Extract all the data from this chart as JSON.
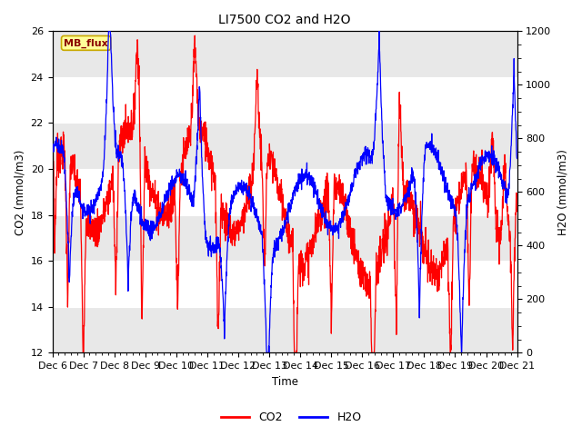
{
  "title": "LI7500 CO2 and H2O",
  "xlabel": "Time",
  "ylabel_left": "CO2 (mmol/m3)",
  "ylabel_right": "H2O (mmol/m3)",
  "ylim_left": [
    12,
    26
  ],
  "ylim_right": [
    0,
    1200
  ],
  "yticks_left": [
    12,
    14,
    16,
    18,
    20,
    22,
    24,
    26
  ],
  "yticks_right": [
    0,
    200,
    400,
    600,
    800,
    1000,
    1200
  ],
  "xtick_labels": [
    "Dec 6",
    "Dec 7",
    "Dec 8",
    "Dec 9",
    "Dec 10",
    "Dec 11",
    "Dec 12",
    "Dec 13",
    "Dec 14",
    "Dec 15",
    "Dec 16",
    "Dec 17",
    "Dec 18",
    "Dec 19",
    "Dec 20",
    "Dec 21"
  ],
  "background_color": "#ffffff",
  "plot_bg_color": "#ffffff",
  "stripe_color": "#e8e8e8",
  "co2_color": "#ff0000",
  "h2o_color": "#0000ff",
  "legend_co2": "CO2",
  "legend_h2o": "H2O",
  "annotation_text": "MB_flux",
  "annotation_color": "#8b0000",
  "annotation_bg": "#ffff99",
  "annotation_border": "#c8a800",
  "stripe_ranges": [
    [
      24,
      26
    ],
    [
      20,
      22
    ],
    [
      16,
      18
    ],
    [
      12,
      14
    ]
  ]
}
